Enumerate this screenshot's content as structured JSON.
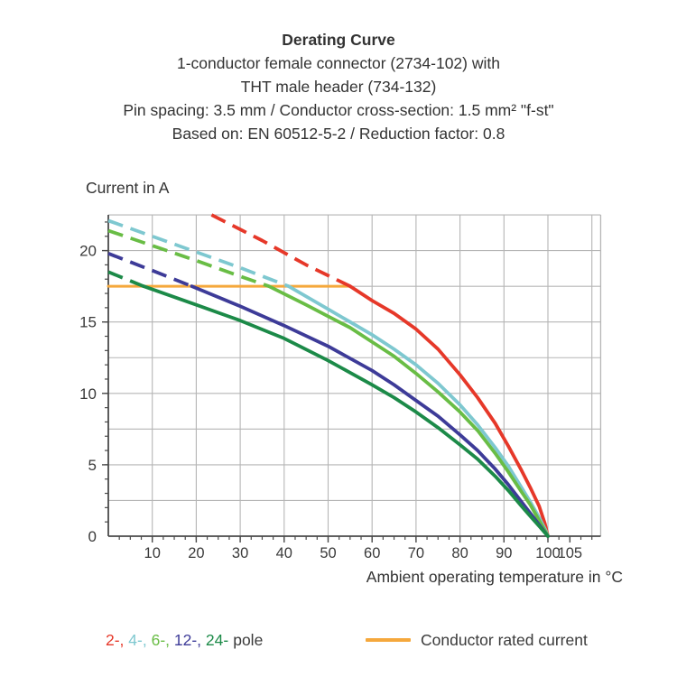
{
  "title": {
    "lines": [
      "Derating Curve",
      "1-conductor female connector (2734-102) with",
      "THT male header (734-132)",
      "Pin spacing: 3.5 mm / Conductor cross-section: 1.5 mm² \"f-st\"",
      "Based on: EN 60512-5-2 / Reduction factor: 0.8"
    ]
  },
  "chart_data": {
    "type": "line",
    "title": "Derating Curve",
    "ylabel": "Current in A",
    "xlabel": "Ambient operating temperature in °C",
    "xlim": [
      0,
      112
    ],
    "ylim": [
      0,
      22.5
    ],
    "x_ticks_labeled": [
      10,
      20,
      30,
      40,
      50,
      60,
      70,
      80,
      90,
      100,
      105
    ],
    "y_ticks_labeled": [
      0,
      5,
      10,
      15,
      20
    ],
    "x_grid_step": 10,
    "y_grid_step": 2.5,
    "x_minor_tick_step": 2.5,
    "y_minor_tick_step": 1,
    "grid": true,
    "grid_color": "#b5b5b5",
    "axis_color": "#4a4a4a",
    "label_color": "#3a3a3a",
    "rated_line": {
      "name": "Conductor rated current",
      "color": "#f5a83c",
      "y": 17.5,
      "x_start": 0,
      "x_end": 55
    },
    "series": [
      {
        "name": "2-pole",
        "color": "#e63829",
        "dashed": [
          [
            23.5,
            22.5
          ],
          [
            35,
            20.7
          ],
          [
            45,
            19.0
          ],
          [
            55,
            17.5
          ]
        ],
        "solid": [
          [
            55,
            17.5
          ],
          [
            60,
            16.5
          ],
          [
            65,
            15.6
          ],
          [
            70,
            14.5
          ],
          [
            75,
            13.1
          ],
          [
            80,
            11.3
          ],
          [
            84,
            9.7
          ],
          [
            88,
            7.9
          ],
          [
            91,
            6.3
          ],
          [
            94,
            4.6
          ],
          [
            96,
            3.4
          ],
          [
            98,
            2.1
          ],
          [
            99.3,
            0.9
          ],
          [
            100,
            0
          ]
        ]
      },
      {
        "name": "4-pole",
        "color": "#7ec8d0",
        "dashed": [
          [
            0,
            22.1
          ],
          [
            10,
            21.0
          ],
          [
            20,
            19.9
          ],
          [
            30,
            18.8
          ],
          [
            41,
            17.5
          ]
        ],
        "solid": [
          [
            41,
            17.5
          ],
          [
            50,
            15.9
          ],
          [
            55,
            15.0
          ],
          [
            60,
            14.1
          ],
          [
            65,
            13.1
          ],
          [
            70,
            12.0
          ],
          [
            75,
            10.7
          ],
          [
            80,
            9.2
          ],
          [
            84,
            7.8
          ],
          [
            88,
            6.2
          ],
          [
            91,
            4.9
          ],
          [
            94,
            3.4
          ],
          [
            96,
            2.4
          ],
          [
            98,
            1.3
          ],
          [
            99.5,
            0.4
          ],
          [
            100,
            0
          ]
        ]
      },
      {
        "name": "6-pole",
        "color": "#69bd45",
        "dashed": [
          [
            0,
            21.4
          ],
          [
            10,
            20.35
          ],
          [
            20,
            19.3
          ],
          [
            30,
            18.2
          ],
          [
            36.5,
            17.5
          ]
        ],
        "solid": [
          [
            36.5,
            17.5
          ],
          [
            45,
            16.2
          ],
          [
            50,
            15.4
          ],
          [
            55,
            14.6
          ],
          [
            60,
            13.6
          ],
          [
            65,
            12.6
          ],
          [
            70,
            11.4
          ],
          [
            75,
            10.1
          ],
          [
            80,
            8.7
          ],
          [
            84,
            7.4
          ],
          [
            88,
            5.8
          ],
          [
            91,
            4.5
          ],
          [
            94,
            3.1
          ],
          [
            96,
            2.2
          ],
          [
            98,
            1.1
          ],
          [
            99.5,
            0.3
          ],
          [
            100,
            0
          ]
        ]
      },
      {
        "name": "12-pole",
        "color": "#3d3b98",
        "dashed": [
          [
            0,
            19.8
          ],
          [
            10,
            18.6
          ],
          [
            19,
            17.5
          ]
        ],
        "solid": [
          [
            19,
            17.5
          ],
          [
            30,
            16.1
          ],
          [
            40,
            14.75
          ],
          [
            50,
            13.3
          ],
          [
            60,
            11.6
          ],
          [
            65,
            10.6
          ],
          [
            70,
            9.5
          ],
          [
            75,
            8.4
          ],
          [
            80,
            7.1
          ],
          [
            84,
            6.0
          ],
          [
            88,
            4.7
          ],
          [
            91,
            3.6
          ],
          [
            94,
            2.4
          ],
          [
            96,
            1.6
          ],
          [
            98,
            0.8
          ],
          [
            100,
            0
          ]
        ]
      },
      {
        "name": "24-pole",
        "color": "#1c8a48",
        "dashed": [
          [
            0,
            18.5
          ],
          [
            8,
            17.5
          ]
        ],
        "solid": [
          [
            8,
            17.5
          ],
          [
            20,
            16.2
          ],
          [
            30,
            15.1
          ],
          [
            40,
            13.85
          ],
          [
            50,
            12.3
          ],
          [
            60,
            10.6
          ],
          [
            65,
            9.7
          ],
          [
            70,
            8.7
          ],
          [
            75,
            7.6
          ],
          [
            80,
            6.4
          ],
          [
            84,
            5.4
          ],
          [
            88,
            4.2
          ],
          [
            91,
            3.2
          ],
          [
            94,
            2.1
          ],
          [
            96,
            1.4
          ],
          [
            98,
            0.7
          ],
          [
            100,
            0
          ]
        ]
      }
    ]
  },
  "legend": {
    "pole_items": [
      {
        "label": "2-,",
        "color": "#e63829"
      },
      {
        "label": "4-,",
        "color": "#7ec8d0"
      },
      {
        "label": "6-,",
        "color": "#69bd45"
      },
      {
        "label": "12-,",
        "color": "#3d3b98"
      },
      {
        "label": "24-",
        "color": "#1c8a48"
      }
    ],
    "pole_suffix": "pole",
    "rated_label": "Conductor rated current",
    "rated_color": "#f5a83c"
  }
}
